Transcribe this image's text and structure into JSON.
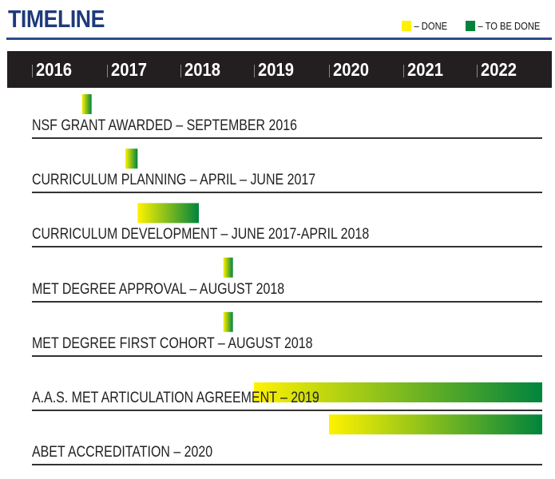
{
  "title": "TIMELINE",
  "legend": [
    {
      "label": "– DONE",
      "color": "#fff200"
    },
    {
      "label": "– TO BE DONE",
      "color": "#00843d"
    }
  ],
  "colors": {
    "done": "#fff200",
    "to_be_done": "#00843d",
    "header_bg": "#231f20",
    "title": "#1f3a7a"
  },
  "chart_data": {
    "type": "gantt",
    "title": "TIMELINE",
    "x_axis": {
      "tick_labels": [
        "2016",
        "2017",
        "2018",
        "2019",
        "2020",
        "2021",
        "2022"
      ],
      "range": [
        "2016",
        "2022"
      ]
    },
    "tasks": [
      {
        "label": "NSF GRANT AWARDED – SEPTEMBER 2016",
        "start": "2016-09",
        "end": "2016-10"
      },
      {
        "label": "CURRICULUM PLANNING – APRIL – JUNE 2017",
        "start": "2017-04",
        "end": "2017-06"
      },
      {
        "label": "CURRICULUM DEVELOPMENT – JUNE 2017-APRIL 2018",
        "start": "2017-06",
        "end": "2018-04"
      },
      {
        "label": "MET DEGREE APPROVAL – AUGUST 2018",
        "start": "2018-08",
        "end": "2018-09"
      },
      {
        "label": "MET DEGREE FIRST COHORT – AUGUST 2018",
        "start": "2018-08",
        "end": "2018-09"
      },
      {
        "label": "A.A.S. MET ARTICULATION AGREEMENT – 2019",
        "start": "2019-01",
        "end": "2022-12"
      },
      {
        "label": "ABET ACCREDITATION – 2020",
        "start": "2020-01",
        "end": "2022-12"
      }
    ]
  }
}
